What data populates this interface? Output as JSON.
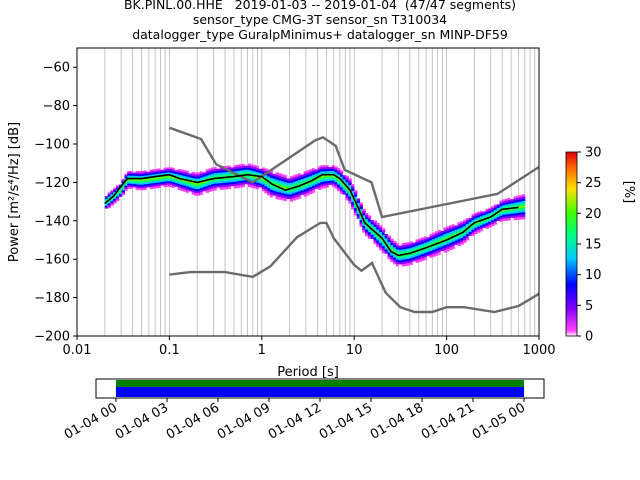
{
  "title_lines": [
    "BK.PINL.00.HHE   2019-01-03 -- 2019-01-04  (47/47 segments)",
    "sensor_type CMG-3T sensor_sn T310034",
    "datalogger_type GuralpMinimus+ datalogger_sn MINP-DF59"
  ],
  "chart_data": {
    "type": "heatmap",
    "xlabel": "Period [s]",
    "ylabel": "Power [m²/s⁴/Hz] [dB]",
    "xscale": "log",
    "xlim": [
      0.01,
      1000
    ],
    "ylim": [
      -200,
      -50
    ],
    "x_ticks": [
      "0.01",
      "0.1",
      "1",
      "10",
      "100",
      "1000"
    ],
    "x_tick_values": [
      0.01,
      0.1,
      1,
      10,
      100,
      1000
    ],
    "y_ticks": [
      "−60",
      "−80",
      "−100",
      "−120",
      "−140",
      "−160",
      "−180",
      "−200"
    ],
    "y_tick_values": [
      -60,
      -80,
      -100,
      -120,
      -140,
      -160,
      -180,
      -200
    ],
    "grid": "vertical log minor lines",
    "colorbar": {
      "label": "[%]",
      "range": [
        0,
        30
      ],
      "ticks": [
        "0",
        "5",
        "10",
        "15",
        "20",
        "25",
        "30"
      ],
      "tick_values": [
        0,
        5,
        10,
        15,
        20,
        25,
        30
      ]
    },
    "mode_line": {
      "color": "#000000",
      "points": [
        [
          0.02,
          -131
        ],
        [
          0.025,
          -127
        ],
        [
          0.03,
          -122
        ],
        [
          0.035,
          -118
        ],
        [
          0.05,
          -118
        ],
        [
          0.07,
          -117
        ],
        [
          0.1,
          -116
        ],
        [
          0.13,
          -118
        ],
        [
          0.2,
          -120
        ],
        [
          0.3,
          -118
        ],
        [
          0.5,
          -117
        ],
        [
          0.7,
          -116
        ],
        [
          1.0,
          -117
        ],
        [
          1.3,
          -121
        ],
        [
          1.8,
          -124
        ],
        [
          2.5,
          -122
        ],
        [
          3.5,
          -119
        ],
        [
          4.5,
          -116
        ],
        [
          6,
          -116
        ],
        [
          7,
          -118
        ],
        [
          9,
          -124
        ],
        [
          11,
          -133
        ],
        [
          13,
          -141
        ],
        [
          16,
          -145
        ],
        [
          20,
          -149
        ],
        [
          25,
          -156
        ],
        [
          30,
          -158
        ],
        [
          40,
          -157
        ],
        [
          60,
          -154
        ],
        [
          100,
          -150
        ],
        [
          150,
          -146
        ],
        [
          200,
          -141
        ],
        [
          300,
          -138
        ],
        [
          400,
          -134
        ],
        [
          600,
          -133
        ]
      ]
    },
    "noise_models": [
      {
        "name": "NHNM",
        "color": "#6b6b6b",
        "points": [
          [
            0.1,
            -91.5
          ],
          [
            0.22,
            -97.4
          ],
          [
            0.32,
            -110.5
          ],
          [
            0.8,
            -120
          ],
          [
            3.8,
            -98
          ],
          [
            4.6,
            -96.5
          ],
          [
            6.3,
            -101
          ],
          [
            7.9,
            -113.5
          ],
          [
            15.4,
            -120
          ],
          [
            20,
            -138
          ],
          [
            354.8,
            -126
          ],
          [
            1000,
            -112
          ]
        ]
      },
      {
        "name": "NLNM",
        "color": "#6b6b6b",
        "points": [
          [
            0.1,
            -168
          ],
          [
            0.17,
            -166.7
          ],
          [
            0.4,
            -166.7
          ],
          [
            0.8,
            -169.2
          ],
          [
            1.24,
            -163.7
          ],
          [
            2.4,
            -148.6
          ],
          [
            4.3,
            -141.1
          ],
          [
            5.0,
            -141.1
          ],
          [
            6.0,
            -149
          ],
          [
            10,
            -163
          ],
          [
            12,
            -166
          ],
          [
            15.6,
            -162
          ],
          [
            21.9,
            -177.5
          ],
          [
            31.6,
            -185
          ],
          [
            45,
            -187.5
          ],
          [
            70,
            -187.5
          ],
          [
            100,
            -185
          ],
          [
            154.5,
            -185
          ],
          [
            328.4,
            -187.5
          ],
          [
            600,
            -184.4
          ],
          [
            1000,
            -178
          ]
        ]
      }
    ],
    "histogram_band": {
      "upper": [
        [
          0.02,
          -127
        ],
        [
          0.03,
          -120
        ],
        [
          0.035,
          -114
        ],
        [
          0.05,
          -114
        ],
        [
          0.1,
          -112
        ],
        [
          0.2,
          -115
        ],
        [
          0.3,
          -112
        ],
        [
          0.5,
          -111
        ],
        [
          0.7,
          -110
        ],
        [
          1.0,
          -112
        ],
        [
          1.3,
          -114
        ],
        [
          2,
          -117
        ],
        [
          3,
          -114
        ],
        [
          4.5,
          -111
        ],
        [
          6,
          -111
        ],
        [
          7,
          -113
        ],
        [
          9,
          -118
        ],
        [
          11,
          -127
        ],
        [
          13,
          -135
        ],
        [
          16,
          -139
        ],
        [
          20,
          -143
        ],
        [
          25,
          -149
        ],
        [
          30,
          -152
        ],
        [
          40,
          -151
        ],
        [
          60,
          -148
        ],
        [
          100,
          -143
        ],
        [
          150,
          -140
        ],
        [
          200,
          -136
        ],
        [
          300,
          -133
        ],
        [
          400,
          -129
        ],
        [
          700,
          -126
        ]
      ],
      "lower": [
        [
          0.02,
          -135
        ],
        [
          0.03,
          -128
        ],
        [
          0.035,
          -123
        ],
        [
          0.05,
          -124
        ],
        [
          0.1,
          -122
        ],
        [
          0.2,
          -127
        ],
        [
          0.3,
          -124
        ],
        [
          0.5,
          -123
        ],
        [
          0.7,
          -122
        ],
        [
          1.0,
          -124
        ],
        [
          1.3,
          -128
        ],
        [
          2,
          -130
        ],
        [
          3,
          -127
        ],
        [
          4.5,
          -123
        ],
        [
          6,
          -122
        ],
        [
          7,
          -125
        ],
        [
          9,
          -131
        ],
        [
          11,
          -140
        ],
        [
          13,
          -147
        ],
        [
          16,
          -151
        ],
        [
          20,
          -156
        ],
        [
          25,
          -161
        ],
        [
          30,
          -164
        ],
        [
          40,
          -163
        ],
        [
          60,
          -160
        ],
        [
          100,
          -156
        ],
        [
          150,
          -152
        ],
        [
          200,
          -147
        ],
        [
          300,
          -143
        ],
        [
          400,
          -140
        ],
        [
          700,
          -139
        ]
      ]
    }
  },
  "timeline": {
    "ticks": [
      "01-04 00",
      "01-04 03",
      "01-04 06",
      "01-04 09",
      "01-04 12",
      "01-04 15",
      "01-04 18",
      "01-04 21",
      "01-05 00"
    ],
    "coverage_color": "#0000ff",
    "coverage_top_color": "#008000"
  }
}
